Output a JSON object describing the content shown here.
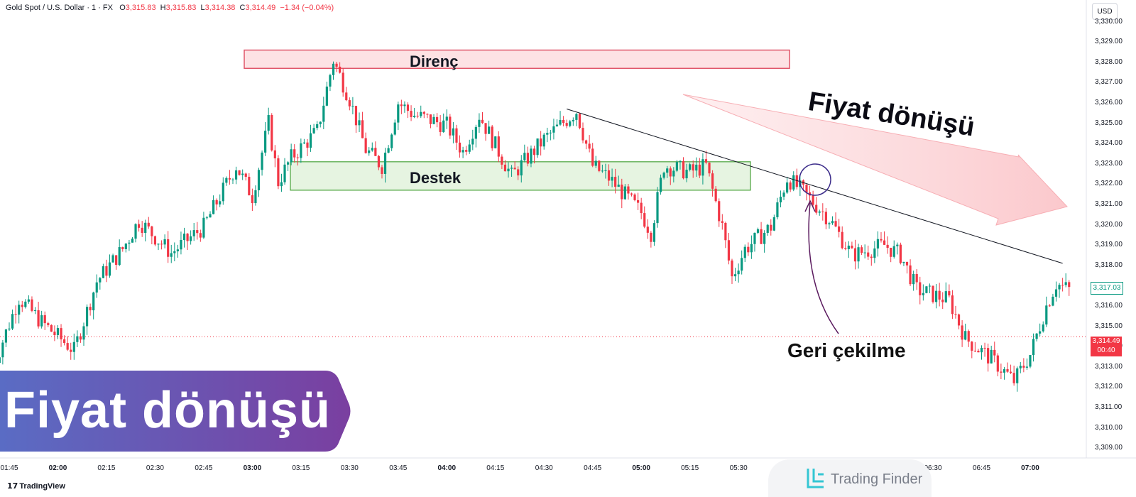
{
  "header": {
    "symbol": "Gold Spot / U.S. Dollar · 1 · FX",
    "open_key": "O",
    "open": "3,315.83",
    "high_key": "H",
    "high": "3,315.83",
    "low_key": "L",
    "low": "3,314.38",
    "close_key": "C",
    "close": "3,314.49",
    "change": "−1.34 (−0.04%)"
  },
  "currency_button": "USD",
  "price_tags": {
    "last_visible": "3,317.03",
    "current_price": "3,314.49",
    "countdown": "00:40"
  },
  "annotations": {
    "resistance": "Direnç",
    "support": "Destek",
    "trend": "Fiyat dönüşü",
    "pullback": "Geri çekilme"
  },
  "banner": {
    "title": "Fiyat dönüşü"
  },
  "branding": {
    "platform": "TradingView",
    "watermark": "Trading Finder"
  },
  "colors": {
    "up": "#089981",
    "down": "#f23645",
    "resistance_fill": "#fde2e4",
    "resistance_border": "#e0566a",
    "support_fill": "#e6f4e1",
    "support_border": "#48a23a",
    "banner_start": "#5a6cc4",
    "banner_end": "#7a3fa0",
    "trend_arrow": "#fbd3d6",
    "pullback_marker": "#3c2c8a"
  },
  "chart_data": {
    "type": "candlestick",
    "title": "Gold Spot / U.S. Dollar · 1 · FX",
    "xlabel": "",
    "ylabel": "",
    "ylim": [
      3308.5,
      3330.3
    ],
    "y_ticks": [
      "3,330.00",
      "3,329.00",
      "3,328.00",
      "3,327.00",
      "3,326.00",
      "3,325.00",
      "3,324.00",
      "3,323.00",
      "3,322.00",
      "3,321.00",
      "3,320.00",
      "3,319.00",
      "3,318.00",
      "3,317.00",
      "3,316.00",
      "3,315.00",
      "3,314.00",
      "3,313.00",
      "3,312.00",
      "3,311.00",
      "3,310.00",
      "3,309.00"
    ],
    "x_ticks": [
      {
        "label": "01:45",
        "bold": false
      },
      {
        "label": "02:00",
        "bold": true
      },
      {
        "label": "02:15",
        "bold": false
      },
      {
        "label": "02:30",
        "bold": false
      },
      {
        "label": "02:45",
        "bold": false
      },
      {
        "label": "03:00",
        "bold": true
      },
      {
        "label": "03:15",
        "bold": false
      },
      {
        "label": "03:30",
        "bold": false
      },
      {
        "label": "03:45",
        "bold": false
      },
      {
        "label": "04:00",
        "bold": true
      },
      {
        "label": "04:15",
        "bold": false
      },
      {
        "label": "04:30",
        "bold": false
      },
      {
        "label": "04:45",
        "bold": false
      },
      {
        "label": "05:00",
        "bold": true
      },
      {
        "label": "05:15",
        "bold": false
      },
      {
        "label": "05:30",
        "bold": false
      },
      {
        "label": "06:30",
        "bold": false
      },
      {
        "label": "06:45",
        "bold": false
      },
      {
        "label": "07:00",
        "bold": true
      }
    ],
    "candle_interval_minutes": 1,
    "time_range": [
      "01:40",
      "07:12"
    ],
    "close_path": [
      [
        "01:40",
        3313.0
      ],
      [
        "01:48",
        3316.4
      ],
      [
        "01:55",
        3315.2
      ],
      [
        "02:05",
        3313.8
      ],
      [
        "02:12",
        3317.2
      ],
      [
        "02:20",
        3318.8
      ],
      [
        "02:25",
        3320.2
      ],
      [
        "02:35",
        3318.6
      ],
      [
        "02:45",
        3319.9
      ],
      [
        "02:55",
        3322.9
      ],
      [
        "03:00",
        3321.4
      ],
      [
        "03:05",
        3325.0
      ],
      [
        "03:08",
        3322.1
      ],
      [
        "03:12",
        3323.3
      ],
      [
        "03:20",
        3324.6
      ],
      [
        "03:25",
        3328.1
      ],
      [
        "03:30",
        3326.2
      ],
      [
        "03:35",
        3323.7
      ],
      [
        "03:40",
        3322.9
      ],
      [
        "03:45",
        3326.0
      ],
      [
        "03:50",
        3325.4
      ],
      [
        "04:00",
        3324.9
      ],
      [
        "04:05",
        3323.6
      ],
      [
        "04:10",
        3325.4
      ],
      [
        "04:20",
        3322.4
      ],
      [
        "04:30",
        3324.2
      ],
      [
        "04:40",
        3325.6
      ],
      [
        "04:45",
        3322.9
      ],
      [
        "04:50",
        3322.3
      ],
      [
        "05:00",
        3320.6
      ],
      [
        "05:03",
        3319.6
      ],
      [
        "05:07",
        3322.9
      ],
      [
        "05:15",
        3322.6
      ],
      [
        "05:20",
        3322.9
      ],
      [
        "05:25",
        3319.9
      ],
      [
        "05:28",
        3317.4
      ],
      [
        "05:32",
        3318.8
      ],
      [
        "05:40",
        3319.9
      ],
      [
        "05:45",
        3322.3
      ],
      [
        "05:50",
        3321.6
      ],
      [
        "05:58",
        3320.3
      ],
      [
        "06:05",
        3318.5
      ],
      [
        "06:15",
        3319.0
      ],
      [
        "06:20",
        3318.5
      ],
      [
        "06:25",
        3316.8
      ],
      [
        "06:35",
        3316.3
      ],
      [
        "06:40",
        3314.4
      ],
      [
        "06:48",
        3313.4
      ],
      [
        "06:55",
        3312.3
      ],
      [
        "07:00",
        3313.6
      ],
      [
        "07:05",
        3316.0
      ],
      [
        "07:08",
        3317.1
      ],
      [
        "07:12",
        3316.8
      ]
    ],
    "levels": {
      "resistance_zone": [
        3327.7,
        3328.6
      ],
      "support_zone": [
        3321.7,
        3323.1
      ],
      "current_price": 3314.49,
      "last_visible_close": 3317.03
    },
    "trendline": [
      [
        "04:37",
        3325.7
      ],
      [
        "07:10",
        3318.1
      ]
    ],
    "legend": "none",
    "grid": false
  }
}
